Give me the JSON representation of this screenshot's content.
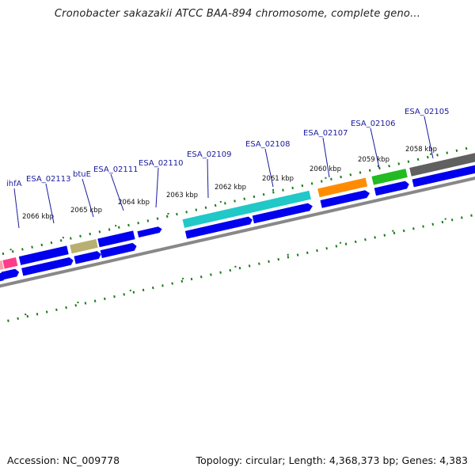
{
  "title": "Cronobacter sakazakii ATCC BAA-894 chromosome, complete geno...",
  "footer": {
    "accession": "Accession: NC_009778",
    "topology": "Topology: circular; Length: 4,368,373 bp; Genes: 4,383"
  },
  "colors": {
    "cds": "#0000ee",
    "gene_label": "#1a1aa0",
    "ticks": "#1a7a1a",
    "backbone": "#888888"
  },
  "kbp_labels": [
    "2066 kbp",
    "2065 kbp",
    "2064 kbp",
    "2063 kbp",
    "2062 kbp",
    "2061 kbp",
    "2060 kbp",
    "2059 kbp",
    "2058 kbp"
  ],
  "gene_labels": [
    "ihfA",
    "ESA_02113",
    "btuE",
    "ESA_02111",
    "ESA_02110",
    "ESA_02109",
    "ESA_02108",
    "ESA_02107",
    "ESA_02106",
    "ESA_02105"
  ],
  "gene_colors": {
    "ihfA": "#ff3b8a",
    "btuE": "#b8b070",
    "ESA_02109": "#20c8c8",
    "ESA_02107": "#ff8c00",
    "ESA_02106": "#22bb22",
    "ESA_02105": "#606060"
  }
}
